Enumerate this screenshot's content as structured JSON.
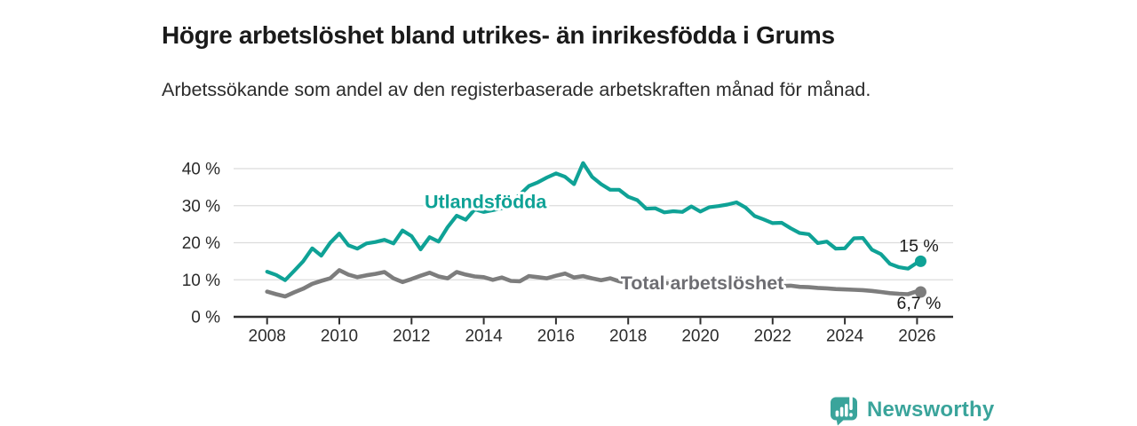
{
  "page": {
    "background": "#ffffff"
  },
  "branding": {
    "name": "Newsworthy",
    "icon": "bar-chart-speech-bubble-icon",
    "color": "#3aa49b"
  },
  "chart_data": {
    "type": "line",
    "title": "Högre arbetslöshet bland utrikes- än inrikesfödda i Grums",
    "subtitle": "Arbetssökande som andel av den registerbaserade arbetskraften månad för månad.",
    "grid": "horizontal",
    "legend_position": "inline-labels",
    "x_axis": {
      "ticks": [
        2008,
        2010,
        2012,
        2014,
        2016,
        2018,
        2020,
        2022,
        2024,
        2026
      ],
      "range": [
        2007.1,
        2027.0
      ]
    },
    "y_axis": {
      "ticks": [
        0,
        10,
        20,
        30,
        40
      ],
      "suffix": " %",
      "range": [
        0,
        42
      ]
    },
    "colors": {
      "grid": "#dcdcdc",
      "axis": "#2f2f2f",
      "tick_text": "#2b2b2b"
    },
    "series": [
      {
        "name": "Utlandsfödda",
        "color": "#0fa296",
        "line_width": 4.2,
        "label": {
          "text": "Utlandsfödda",
          "x": 2014.05,
          "y": 31
        },
        "end_label": {
          "text": "15 %",
          "dx": -2,
          "dy": -11
        },
        "end_value": 15,
        "points": [
          [
            2008.0,
            12.2
          ],
          [
            2008.25,
            11.3
          ],
          [
            2008.5,
            9.9
          ],
          [
            2008.75,
            12.4
          ],
          [
            2009.0,
            15.0
          ],
          [
            2009.25,
            18.5
          ],
          [
            2009.5,
            16.5
          ],
          [
            2009.75,
            20.0
          ],
          [
            2010.0,
            22.5
          ],
          [
            2010.25,
            19.3
          ],
          [
            2010.5,
            18.4
          ],
          [
            2010.75,
            19.8
          ],
          [
            2011.0,
            20.2
          ],
          [
            2011.25,
            20.8
          ],
          [
            2011.5,
            19.8
          ],
          [
            2011.75,
            23.3
          ],
          [
            2012.0,
            21.8
          ],
          [
            2012.25,
            18.2
          ],
          [
            2012.5,
            21.5
          ],
          [
            2012.75,
            20.3
          ],
          [
            2013.0,
            24.2
          ],
          [
            2013.25,
            27.3
          ],
          [
            2013.5,
            26.2
          ],
          [
            2013.75,
            29.0
          ],
          [
            2014.0,
            28.3
          ],
          [
            2014.25,
            28.8
          ],
          [
            2014.5,
            29.3
          ],
          [
            2014.75,
            30.8
          ],
          [
            2015.0,
            33.0
          ],
          [
            2015.25,
            35.3
          ],
          [
            2015.5,
            36.3
          ],
          [
            2015.75,
            37.6
          ],
          [
            2016.0,
            38.7
          ],
          [
            2016.25,
            37.8
          ],
          [
            2016.5,
            35.8
          ],
          [
            2016.75,
            41.5
          ],
          [
            2017.0,
            37.8
          ],
          [
            2017.25,
            35.8
          ],
          [
            2017.5,
            34.3
          ],
          [
            2017.75,
            34.3
          ],
          [
            2018.0,
            32.4
          ],
          [
            2018.25,
            31.5
          ],
          [
            2018.5,
            29.2
          ],
          [
            2018.75,
            29.3
          ],
          [
            2019.0,
            28.2
          ],
          [
            2019.25,
            28.5
          ],
          [
            2019.5,
            28.3
          ],
          [
            2019.75,
            29.8
          ],
          [
            2020.0,
            28.4
          ],
          [
            2020.25,
            29.6
          ],
          [
            2020.5,
            29.9
          ],
          [
            2020.75,
            30.3
          ],
          [
            2021.0,
            30.9
          ],
          [
            2021.25,
            29.5
          ],
          [
            2021.5,
            27.2
          ],
          [
            2021.75,
            26.3
          ],
          [
            2022.0,
            25.3
          ],
          [
            2022.25,
            25.4
          ],
          [
            2022.5,
            23.9
          ],
          [
            2022.75,
            22.6
          ],
          [
            2023.0,
            22.3
          ],
          [
            2023.25,
            19.9
          ],
          [
            2023.5,
            20.3
          ],
          [
            2023.75,
            18.4
          ],
          [
            2024.0,
            18.5
          ],
          [
            2024.25,
            21.2
          ],
          [
            2024.5,
            21.3
          ],
          [
            2024.75,
            18.1
          ],
          [
            2025.0,
            16.9
          ],
          [
            2025.25,
            14.3
          ],
          [
            2025.5,
            13.4
          ],
          [
            2025.75,
            13.0
          ],
          [
            2026.0,
            14.6
          ],
          [
            2026.1,
            15.0
          ]
        ]
      },
      {
        "name": "Total arbetslöshet",
        "color": "#7d7d7d",
        "label_color": "#6e6e73",
        "line_width": 4.6,
        "label": {
          "text": "Total arbetslöshet",
          "x": 2020.05,
          "y": 9.1
        },
        "end_label": {
          "text": "6,7 %",
          "dx": -2,
          "dy": 19
        },
        "end_value": 6.7,
        "points": [
          [
            2008.0,
            6.8
          ],
          [
            2008.25,
            6.1
          ],
          [
            2008.5,
            5.5
          ],
          [
            2008.75,
            6.6
          ],
          [
            2009.0,
            7.6
          ],
          [
            2009.25,
            8.9
          ],
          [
            2009.5,
            9.7
          ],
          [
            2009.75,
            10.4
          ],
          [
            2010.0,
            12.6
          ],
          [
            2010.25,
            11.4
          ],
          [
            2010.5,
            10.7
          ],
          [
            2010.75,
            11.2
          ],
          [
            2011.0,
            11.6
          ],
          [
            2011.25,
            12.1
          ],
          [
            2011.5,
            10.4
          ],
          [
            2011.75,
            9.4
          ],
          [
            2012.0,
            10.2
          ],
          [
            2012.25,
            11.1
          ],
          [
            2012.5,
            11.9
          ],
          [
            2012.75,
            10.9
          ],
          [
            2013.0,
            10.4
          ],
          [
            2013.25,
            12.1
          ],
          [
            2013.5,
            11.4
          ],
          [
            2013.75,
            10.9
          ],
          [
            2014.0,
            10.7
          ],
          [
            2014.25,
            10.0
          ],
          [
            2014.5,
            10.6
          ],
          [
            2014.75,
            9.7
          ],
          [
            2015.0,
            9.6
          ],
          [
            2015.25,
            11.0
          ],
          [
            2015.5,
            10.7
          ],
          [
            2015.75,
            10.4
          ],
          [
            2016.0,
            11.1
          ],
          [
            2016.25,
            11.7
          ],
          [
            2016.5,
            10.6
          ],
          [
            2016.75,
            11.0
          ],
          [
            2017.0,
            10.4
          ],
          [
            2017.25,
            9.9
          ],
          [
            2017.5,
            10.4
          ],
          [
            2017.75,
            9.6
          ],
          [
            2018.0,
            9.1
          ],
          [
            2018.25,
            9.6
          ],
          [
            2018.5,
            9.2
          ],
          [
            2018.75,
            9.0
          ],
          [
            2019.0,
            9.2
          ],
          [
            2019.25,
            8.9
          ],
          [
            2019.5,
            8.8
          ],
          [
            2019.75,
            9.0
          ],
          [
            2020.0,
            9.3
          ],
          [
            2020.25,
            9.6
          ],
          [
            2020.5,
            9.3
          ],
          [
            2020.75,
            9.0
          ],
          [
            2021.0,
            8.8
          ],
          [
            2021.25,
            8.6
          ],
          [
            2021.5,
            8.4
          ],
          [
            2021.75,
            8.2
          ],
          [
            2022.0,
            8.1
          ],
          [
            2022.25,
            8.3
          ],
          [
            2022.5,
            8.4
          ],
          [
            2022.75,
            8.1
          ],
          [
            2023.0,
            8.0
          ],
          [
            2023.25,
            7.8
          ],
          [
            2023.5,
            7.7
          ],
          [
            2023.75,
            7.5
          ],
          [
            2024.0,
            7.4
          ],
          [
            2024.25,
            7.3
          ],
          [
            2024.5,
            7.2
          ],
          [
            2024.75,
            7.0
          ],
          [
            2025.0,
            6.7
          ],
          [
            2025.25,
            6.4
          ],
          [
            2025.5,
            6.2
          ],
          [
            2025.75,
            6.1
          ],
          [
            2026.0,
            6.9
          ],
          [
            2026.1,
            6.7
          ]
        ]
      }
    ]
  }
}
